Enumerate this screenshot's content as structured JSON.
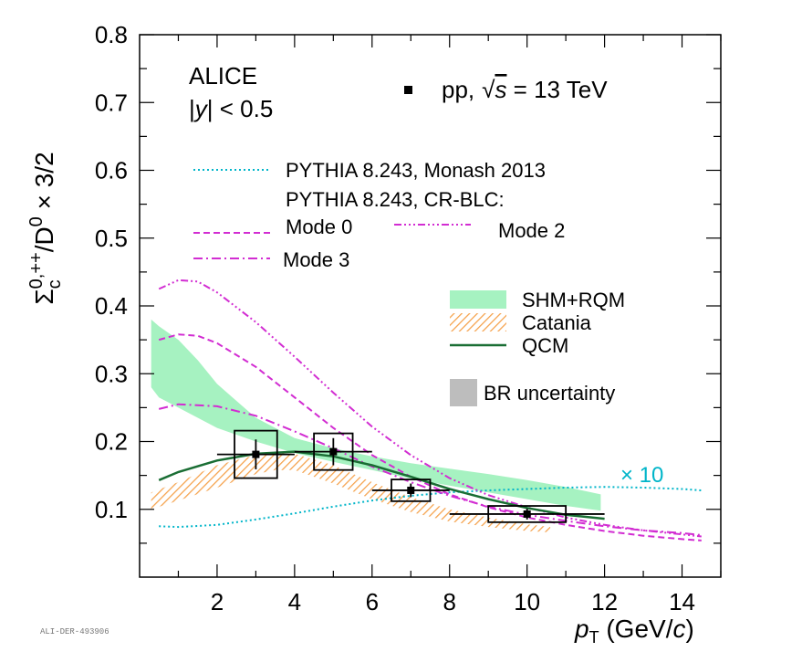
{
  "chart_data": {
    "type": "line",
    "experiment": "ALICE",
    "rapidity_cut_var": "y",
    "rapidity_cut_val": " < 0.5",
    "system_label": "pp,",
    "energy_var": "s",
    "energy_val": " = 13 TeV",
    "ylabel": "Σc0,++/D0 × 3/2",
    "xlabel": "pT (GeV/c)",
    "xlim": [
      0,
      15
    ],
    "ylim": [
      0,
      0.8
    ],
    "x_ticks": [
      2,
      4,
      6,
      8,
      10,
      12,
      14
    ],
    "y_ticks": [
      0.1,
      0.2,
      0.3,
      0.4,
      0.5,
      0.6,
      0.7,
      0.8
    ],
    "scale_note": "× 10",
    "watermark": "ALI-DER-493906",
    "data": {
      "name": "pp, √s = 13 TeV",
      "points": [
        {
          "x": 3,
          "y": 0.181,
          "xerr": 1,
          "stat": 0.022,
          "syst_y": 0.035,
          "syst_xw": 0.55
        },
        {
          "x": 5,
          "y": 0.185,
          "xerr": 1,
          "stat": 0.02,
          "syst_y": 0.027,
          "syst_xw": 0.5
        },
        {
          "x": 7,
          "y": 0.128,
          "xerr": 1,
          "stat": 0.01,
          "syst_y": 0.016,
          "syst_xw": 0.5
        },
        {
          "x": 10,
          "y": 0.093,
          "xerr": 2,
          "stat": 0.008,
          "syst_y": 0.012,
          "syst_xw": 1.0
        }
      ]
    },
    "series": [
      {
        "name": "PYTHIA 8.243, Monash 2013",
        "color": "#00b5c9",
        "dash": "2,3",
        "width": 2,
        "x": [
          0.5,
          1,
          2,
          3,
          4,
          5,
          6,
          7,
          8,
          9,
          10,
          11,
          12,
          13,
          14,
          14.5
        ],
        "y": [
          0.075,
          0.074,
          0.077,
          0.085,
          0.094,
          0.104,
          0.113,
          0.12,
          0.125,
          0.128,
          0.13,
          0.132,
          0.133,
          0.132,
          0.13,
          0.128
        ]
      },
      {
        "name": "Mode 0",
        "color": "#d22dd2",
        "dash": "7,4",
        "width": 2,
        "x": [
          0.5,
          1,
          1.5,
          2,
          3,
          4,
          5,
          6,
          7,
          8,
          9,
          10,
          11,
          12,
          13,
          14,
          14.5
        ],
        "y": [
          0.35,
          0.358,
          0.356,
          0.345,
          0.31,
          0.265,
          0.22,
          0.18,
          0.148,
          0.122,
          0.103,
          0.088,
          0.077,
          0.068,
          0.061,
          0.056,
          0.054
        ]
      },
      {
        "name": "Mode 2",
        "color": "#d22dd2",
        "dash": "8,3,2,3,2,3,2,3",
        "width": 2,
        "x": [
          0.5,
          1,
          1.5,
          2,
          3,
          4,
          5,
          6,
          7,
          8,
          9,
          10,
          11,
          12,
          13,
          14,
          14.5
        ],
        "y": [
          0.425,
          0.438,
          0.436,
          0.42,
          0.376,
          0.325,
          0.272,
          0.222,
          0.18,
          0.146,
          0.121,
          0.103,
          0.088,
          0.077,
          0.069,
          0.063,
          0.06
        ]
      },
      {
        "name": "Mode 3",
        "color": "#d22dd2",
        "dash": "10,4,2,4",
        "width": 2,
        "x": [
          0.5,
          1,
          2,
          3,
          4,
          5,
          6,
          7,
          8,
          9,
          10,
          11,
          12,
          13,
          14,
          14.5
        ],
        "y": [
          0.248,
          0.255,
          0.252,
          0.238,
          0.215,
          0.19,
          0.163,
          0.14,
          0.12,
          0.104,
          0.092,
          0.083,
          0.075,
          0.069,
          0.065,
          0.062
        ]
      },
      {
        "name": "QCM",
        "color": "#1a6e34",
        "dash": "",
        "width": 2.5,
        "x": [
          0.5,
          1,
          2,
          3,
          4,
          5,
          6,
          7,
          8,
          9,
          10,
          11,
          12
        ],
        "y": [
          0.143,
          0.155,
          0.172,
          0.182,
          0.185,
          0.178,
          0.165,
          0.148,
          0.13,
          0.115,
          0.102,
          0.092,
          0.086
        ]
      }
    ],
    "bands": [
      {
        "name": "SHM+RQM",
        "color": "#a6f2c1",
        "hatch": false,
        "x": [
          0.3,
          0.5,
          1,
          1.5,
          2,
          3,
          4,
          5,
          6,
          7,
          8,
          9,
          10,
          11,
          11.9
        ],
        "upper": [
          0.38,
          0.37,
          0.35,
          0.32,
          0.285,
          0.235,
          0.205,
          0.19,
          0.178,
          0.168,
          0.16,
          0.152,
          0.143,
          0.133,
          0.122
        ],
        "lower": [
          0.28,
          0.265,
          0.25,
          0.235,
          0.22,
          0.2,
          0.183,
          0.17,
          0.158,
          0.145,
          0.135,
          0.125,
          0.115,
          0.105,
          0.098
        ]
      },
      {
        "name": "Catania",
        "color": "#f5a14a",
        "hatch": true,
        "x": [
          0.3,
          1,
          2,
          3,
          3.5,
          4,
          5,
          6,
          7,
          8,
          9,
          10,
          10.6
        ],
        "upper": [
          0.125,
          0.14,
          0.165,
          0.18,
          0.183,
          0.182,
          0.165,
          0.14,
          0.118,
          0.1,
          0.088,
          0.078,
          0.074
        ],
        "lower": [
          0.1,
          0.113,
          0.132,
          0.152,
          0.158,
          0.158,
          0.138,
          0.115,
          0.096,
          0.082,
          0.074,
          0.068,
          0.066
        ]
      }
    ],
    "legend": {
      "monash": "PYTHIA 8.243, Monash 2013",
      "crblc": "PYTHIA 8.243, CR-BLC:",
      "mode0": "Mode 0",
      "mode2": "Mode 2",
      "mode3": "Mode 3",
      "shm": "SHM+RQM",
      "catania": "Catania",
      "qcm": "QCM",
      "br": "BR uncertainty"
    },
    "colors": {
      "br_box": "#bdbdbd",
      "x10": "#00b5c9"
    }
  }
}
